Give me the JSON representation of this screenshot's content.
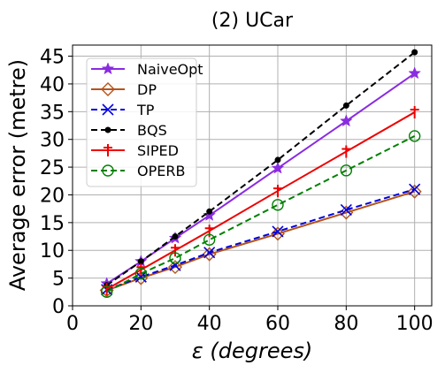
{
  "chart_data": {
    "type": "line",
    "title": "(2) UCar",
    "xlabel": "ε (degrees)",
    "ylabel": "Average error (metre)",
    "xlim": [
      0,
      105
    ],
    "ylim": [
      0,
      47
    ],
    "x_ticks": [
      0,
      20,
      40,
      60,
      80,
      100
    ],
    "y_ticks": [
      0,
      5,
      10,
      15,
      20,
      25,
      30,
      35,
      40,
      45
    ],
    "grid": true,
    "legend_position": "top-left",
    "x": [
      10,
      20,
      30,
      40,
      60,
      80,
      100
    ],
    "series": [
      {
        "name": "NaiveOpt",
        "color": "#8a2be2",
        "dash": "solid",
        "marker": "star",
        "values": [
          4.0,
          8.0,
          12.2,
          16.3,
          24.8,
          33.3,
          41.9
        ]
      },
      {
        "name": "DP",
        "color": "#b5531a",
        "dash": "solid",
        "marker": "diamond-open",
        "values": [
          2.8,
          5.0,
          7.0,
          9.3,
          13.0,
          16.8,
          20.6
        ]
      },
      {
        "name": "TP",
        "color": "#0000dd",
        "dash": "dashed",
        "marker": "x",
        "values": [
          2.9,
          5.2,
          7.3,
          9.6,
          13.4,
          17.3,
          21.0
        ]
      },
      {
        "name": "BQS",
        "color": "#000000",
        "dash": "dashed",
        "marker": "dot",
        "values": [
          3.7,
          8.0,
          12.5,
          17.0,
          26.3,
          36.1,
          45.7
        ]
      },
      {
        "name": "SIPED",
        "color": "#ee0000",
        "dash": "solid",
        "marker": "tick",
        "values": [
          3.0,
          6.5,
          10.0,
          13.5,
          20.7,
          27.8,
          34.9
        ]
      },
      {
        "name": "OPERB",
        "color": "#008000",
        "dash": "dashed",
        "marker": "circle-open",
        "values": [
          2.5,
          5.8,
          8.6,
          11.9,
          18.2,
          24.4,
          30.6
        ]
      }
    ]
  }
}
